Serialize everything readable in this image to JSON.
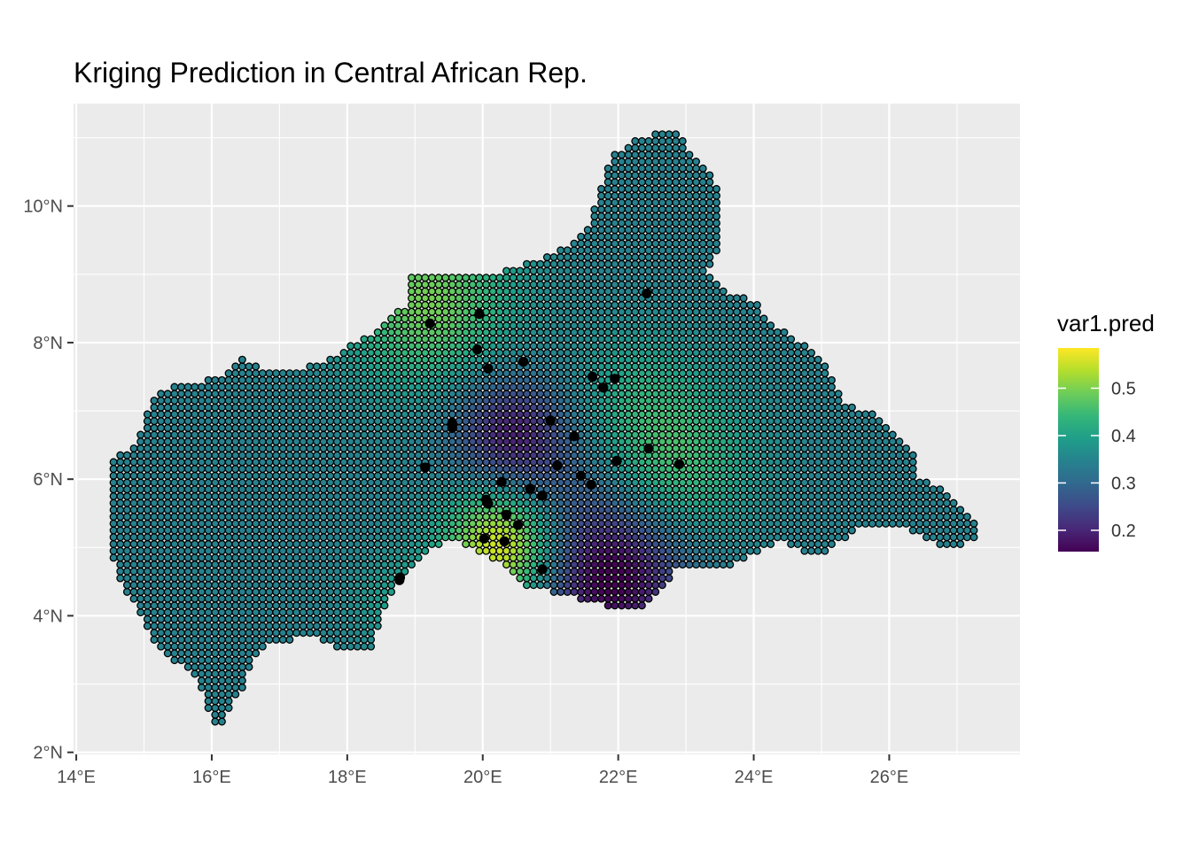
{
  "chart_data": {
    "type": "map-scatter",
    "title": "Kriging Prediction in Central African Rep.",
    "xlabel": "",
    "ylabel": "",
    "xlim": [
      13.96,
      27.93
    ],
    "ylim": [
      1.97,
      11.5
    ],
    "x_ticks": [
      {
        "value": 14,
        "label": "14°E"
      },
      {
        "value": 16,
        "label": "16°E"
      },
      {
        "value": 18,
        "label": "18°E"
      },
      {
        "value": 20,
        "label": "20°E"
      },
      {
        "value": 22,
        "label": "22°E"
      },
      {
        "value": 24,
        "label": "24°E"
      },
      {
        "value": 26,
        "label": "26°E"
      }
    ],
    "y_ticks": [
      {
        "value": 2,
        "label": "2°N"
      },
      {
        "value": 4,
        "label": "4°N"
      },
      {
        "value": 6,
        "label": "6°N"
      },
      {
        "value": 8,
        "label": "8°N"
      },
      {
        "value": 10,
        "label": "10°N"
      }
    ],
    "grid": true,
    "grid_spacing": 0.1,
    "legend": {
      "title": "var1.pred",
      "placement": "right",
      "range": [
        0.155,
        0.585
      ],
      "ticks": [
        {
          "value": 0.2,
          "label": "0.2"
        },
        {
          "value": 0.3,
          "label": "0.3"
        },
        {
          "value": 0.4,
          "label": "0.4"
        },
        {
          "value": 0.5,
          "label": "0.5"
        }
      ],
      "colormap": "viridis"
    },
    "colors": {
      "panel": "#EBEBEB",
      "gridline": "#FFFFFF",
      "point_stroke": "#000000",
      "sample_point": "#000000",
      "viridis": [
        "#440154",
        "#482878",
        "#3E4A89",
        "#31688E",
        "#26828E",
        "#1F9E89",
        "#35B779",
        "#6DCD59",
        "#B4DE2C",
        "#FDE725"
      ]
    },
    "boundary": [
      [
        14.52,
        6.22
      ],
      [
        14.6,
        6.35
      ],
      [
        14.8,
        6.45
      ],
      [
        14.95,
        6.65
      ],
      [
        15.08,
        7.05
      ],
      [
        15.18,
        7.3
      ],
      [
        15.5,
        7.38
      ],
      [
        15.9,
        7.45
      ],
      [
        16.28,
        7.58
      ],
      [
        16.42,
        7.78
      ],
      [
        16.62,
        7.7
      ],
      [
        16.85,
        7.58
      ],
      [
        17.3,
        7.62
      ],
      [
        17.8,
        7.8
      ],
      [
        18.2,
        8.05
      ],
      [
        18.55,
        8.25
      ],
      [
        18.75,
        8.45
      ],
      [
        18.92,
        8.6
      ],
      [
        18.92,
        9.02
      ],
      [
        19.7,
        9.02
      ],
      [
        20.1,
        9.0
      ],
      [
        20.5,
        9.1
      ],
      [
        20.9,
        9.25
      ],
      [
        21.3,
        9.45
      ],
      [
        21.5,
        9.62
      ],
      [
        21.62,
        9.9
      ],
      [
        21.7,
        10.22
      ],
      [
        21.82,
        10.5
      ],
      [
        21.95,
        10.75
      ],
      [
        22.2,
        10.95
      ],
      [
        22.5,
        11.05
      ],
      [
        22.9,
        11.1
      ],
      [
        23.05,
        10.85
      ],
      [
        23.2,
        10.6
      ],
      [
        23.38,
        10.45
      ],
      [
        23.5,
        10.25
      ],
      [
        23.5,
        9.4
      ],
      [
        23.35,
        9.05
      ],
      [
        23.6,
        8.72
      ],
      [
        24.0,
        8.62
      ],
      [
        24.25,
        8.32
      ],
      [
        24.6,
        8.05
      ],
      [
        25.0,
        7.82
      ],
      [
        25.2,
        7.45
      ],
      [
        25.35,
        7.12
      ],
      [
        25.8,
        6.95
      ],
      [
        26.1,
        6.68
      ],
      [
        26.35,
        6.4
      ],
      [
        26.45,
        6.05
      ],
      [
        26.8,
        5.82
      ],
      [
        27.15,
        5.55
      ],
      [
        27.3,
        5.3
      ],
      [
        27.25,
        5.08
      ],
      [
        26.8,
        5.0
      ],
      [
        26.3,
        5.25
      ],
      [
        25.9,
        5.32
      ],
      [
        25.5,
        5.25
      ],
      [
        25.1,
        4.95
      ],
      [
        24.7,
        4.92
      ],
      [
        24.4,
        5.12
      ],
      [
        23.9,
        4.82
      ],
      [
        23.3,
        4.65
      ],
      [
        22.9,
        4.75
      ],
      [
        22.55,
        4.25
      ],
      [
        22.3,
        4.05
      ],
      [
        22.0,
        4.1
      ],
      [
        21.6,
        4.22
      ],
      [
        21.2,
        4.3
      ],
      [
        20.9,
        4.4
      ],
      [
        20.6,
        4.45
      ],
      [
        20.35,
        4.72
      ],
      [
        20.05,
        4.9
      ],
      [
        19.6,
        5.1
      ],
      [
        19.3,
        5.0
      ],
      [
        19.05,
        4.8
      ],
      [
        18.8,
        4.55
      ],
      [
        18.6,
        4.2
      ],
      [
        18.45,
        3.8
      ],
      [
        18.4,
        3.5
      ],
      [
        18.2,
        3.5
      ],
      [
        17.85,
        3.55
      ],
      [
        17.5,
        3.7
      ],
      [
        17.2,
        3.65
      ],
      [
        16.85,
        3.62
      ],
      [
        16.6,
        3.38
      ],
      [
        16.48,
        3.0
      ],
      [
        16.32,
        2.72
      ],
      [
        16.15,
        2.38
      ],
      [
        15.98,
        2.38
      ],
      [
        15.92,
        2.75
      ],
      [
        15.75,
        3.05
      ],
      [
        15.5,
        3.3
      ],
      [
        15.3,
        3.4
      ],
      [
        15.12,
        3.7
      ],
      [
        14.95,
        4.05
      ],
      [
        14.72,
        4.35
      ],
      [
        14.6,
        4.58
      ],
      [
        14.52,
        5.0
      ],
      [
        14.5,
        5.6
      ]
    ],
    "field": {
      "base": 0.345,
      "components": [
        {
          "x": 20.3,
          "y": 5.05,
          "amplitude": 0.24,
          "sigma": 0.6
        },
        {
          "x": 19.2,
          "y": 8.6,
          "amplitude": 0.15,
          "sigma": 0.85
        },
        {
          "x": 22.9,
          "y": 6.2,
          "amplitude": 0.1,
          "sigma": 0.75
        },
        {
          "x": 22.3,
          "y": 7.2,
          "amplitude": 0.06,
          "sigma": 0.7
        },
        {
          "x": 20.4,
          "y": 6.7,
          "amplitude": -0.15,
          "sigma": 0.6
        },
        {
          "x": 21.9,
          "y": 4.55,
          "amplitude": -0.2,
          "sigma": 0.75
        },
        {
          "x": 21.1,
          "y": 5.8,
          "amplitude": -0.05,
          "sigma": 0.7
        },
        {
          "x": 18.8,
          "y": 4.2,
          "amplitude": 0.05,
          "sigma": 0.5
        }
      ]
    },
    "sample_points": [
      [
        19.22,
        8.28
      ],
      [
        19.95,
        8.42
      ],
      [
        19.92,
        7.9
      ],
      [
        20.08,
        7.62
      ],
      [
        20.6,
        7.72
      ],
      [
        21.62,
        7.5
      ],
      [
        21.78,
        7.34
      ],
      [
        21.95,
        7.47
      ],
      [
        19.55,
        6.82
      ],
      [
        19.55,
        6.75
      ],
      [
        21.0,
        6.86
      ],
      [
        21.35,
        6.63
      ],
      [
        19.15,
        6.17
      ],
      [
        21.1,
        6.2
      ],
      [
        21.98,
        6.27
      ],
      [
        22.45,
        6.45
      ],
      [
        22.9,
        6.22
      ],
      [
        20.28,
        5.96
      ],
      [
        21.45,
        6.05
      ],
      [
        21.6,
        5.92
      ],
      [
        20.7,
        5.86
      ],
      [
        20.88,
        5.76
      ],
      [
        20.05,
        5.7
      ],
      [
        20.08,
        5.64
      ],
      [
        20.35,
        5.48
      ],
      [
        20.52,
        5.33
      ],
      [
        20.02,
        5.13
      ],
      [
        20.32,
        5.09
      ],
      [
        20.88,
        4.68
      ],
      [
        18.78,
        4.56
      ],
      [
        18.77,
        4.52
      ],
      [
        22.42,
        8.72
      ]
    ]
  }
}
